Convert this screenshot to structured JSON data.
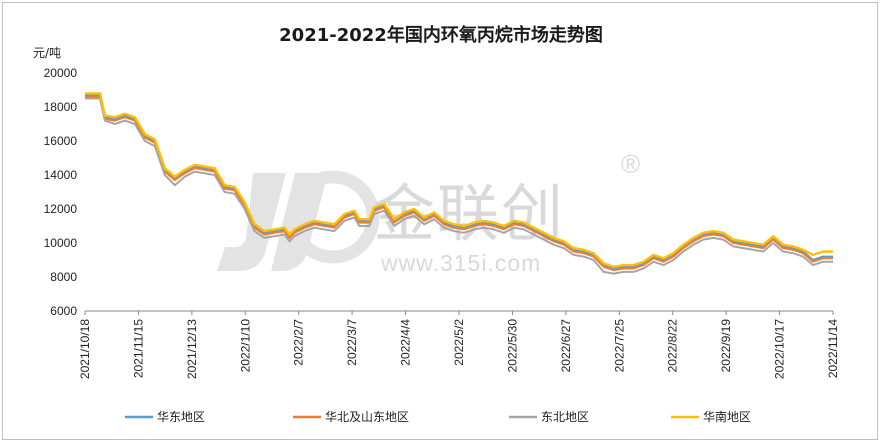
{
  "chart_data": {
    "type": "line",
    "title": "2021-2022年国内环氧丙烷市场走势图",
    "ylabel": "元/吨",
    "xlabel": "",
    "ylim": [
      6000,
      20000
    ],
    "yticks": [
      6000,
      8000,
      10000,
      12000,
      14000,
      16000,
      18000,
      20000
    ],
    "x_tick_labels": [
      "2021/10/18",
      "2021/11/15",
      "2021/12/13",
      "2022/1/10",
      "2022/2/7",
      "2022/3/7",
      "2022/4/4",
      "2022/5/2",
      "2022/5/30",
      "2022/6/27",
      "2022/7/25",
      "2022/8/22",
      "2022/9/19",
      "2022/10/17",
      "2022/11/14"
    ],
    "grid": false,
    "legend_position": "bottom",
    "series": [
      {
        "name": "华东地区",
        "color": "#5b9bd5",
        "values": [
          [
            0,
            18700
          ],
          [
            3,
            18700
          ],
          [
            4,
            17400
          ],
          [
            6,
            17300
          ],
          [
            8,
            17500
          ],
          [
            10,
            17300
          ],
          [
            12,
            16300
          ],
          [
            14,
            16000
          ],
          [
            16,
            14300
          ],
          [
            18,
            13800
          ],
          [
            20,
            14200
          ],
          [
            22,
            14500
          ],
          [
            26,
            14300
          ],
          [
            28,
            13300
          ],
          [
            30,
            13200
          ],
          [
            32,
            12300
          ],
          [
            34,
            11000
          ],
          [
            36,
            10600
          ],
          [
            38,
            10700
          ],
          [
            40,
            10800
          ],
          [
            41,
            10400
          ],
          [
            42,
            10700
          ],
          [
            44,
            11000
          ],
          [
            46,
            11200
          ],
          [
            50,
            11000
          ],
          [
            52,
            11600
          ],
          [
            54,
            11800
          ],
          [
            55,
            11300
          ],
          [
            57,
            11300
          ],
          [
            58,
            12000
          ],
          [
            60,
            12200
          ],
          [
            62,
            11300
          ],
          [
            64,
            11700
          ],
          [
            66,
            11900
          ],
          [
            68,
            11400
          ],
          [
            70,
            11700
          ],
          [
            72,
            11200
          ],
          [
            74,
            11000
          ],
          [
            76,
            10900
          ],
          [
            78,
            11100
          ],
          [
            80,
            11200
          ],
          [
            82,
            11100
          ],
          [
            84,
            10900
          ],
          [
            86,
            11200
          ],
          [
            88,
            11100
          ],
          [
            90,
            10800
          ],
          [
            92,
            10500
          ],
          [
            94,
            10200
          ],
          [
            96,
            10000
          ],
          [
            98,
            9600
          ],
          [
            100,
            9500
          ],
          [
            102,
            9300
          ],
          [
            104,
            8700
          ],
          [
            106,
            8500
          ],
          [
            108,
            8600
          ],
          [
            110,
            8600
          ],
          [
            112,
            8800
          ],
          [
            114,
            9200
          ],
          [
            116,
            9000
          ],
          [
            118,
            9300
          ],
          [
            120,
            9800
          ],
          [
            122,
            10200
          ],
          [
            124,
            10500
          ],
          [
            126,
            10600
          ],
          [
            128,
            10500
          ],
          [
            130,
            10100
          ],
          [
            132,
            10000
          ],
          [
            134,
            9900
          ],
          [
            136,
            9800
          ],
          [
            138,
            10300
          ],
          [
            140,
            9800
          ],
          [
            142,
            9700
          ],
          [
            144,
            9500
          ],
          [
            146,
            9000
          ],
          [
            148,
            9200
          ],
          [
            150,
            9200
          ]
        ]
      },
      {
        "name": "华北及山东地区",
        "color": "#ed7d31",
        "values": [
          [
            0,
            18600
          ],
          [
            3,
            18600
          ],
          [
            4,
            17300
          ],
          [
            6,
            17200
          ],
          [
            8,
            17400
          ],
          [
            10,
            17200
          ],
          [
            12,
            16200
          ],
          [
            14,
            15900
          ],
          [
            16,
            14200
          ],
          [
            18,
            13700
          ],
          [
            20,
            14100
          ],
          [
            22,
            14400
          ],
          [
            26,
            14200
          ],
          [
            28,
            13200
          ],
          [
            30,
            13100
          ],
          [
            32,
            12200
          ],
          [
            34,
            10900
          ],
          [
            36,
            10500
          ],
          [
            38,
            10600
          ],
          [
            40,
            10700
          ],
          [
            41,
            10300
          ],
          [
            42,
            10600
          ],
          [
            44,
            10900
          ],
          [
            46,
            11100
          ],
          [
            50,
            10900
          ],
          [
            52,
            11500
          ],
          [
            54,
            11700
          ],
          [
            55,
            11200
          ],
          [
            57,
            11200
          ],
          [
            58,
            11900
          ],
          [
            60,
            12100
          ],
          [
            62,
            11200
          ],
          [
            64,
            11600
          ],
          [
            66,
            11800
          ],
          [
            68,
            11300
          ],
          [
            70,
            11600
          ],
          [
            72,
            11100
          ],
          [
            74,
            10900
          ],
          [
            76,
            10800
          ],
          [
            78,
            11000
          ],
          [
            80,
            11100
          ],
          [
            82,
            11000
          ],
          [
            84,
            10800
          ],
          [
            86,
            11100
          ],
          [
            88,
            11000
          ],
          [
            90,
            10700
          ],
          [
            92,
            10400
          ],
          [
            94,
            10100
          ],
          [
            96,
            9900
          ],
          [
            98,
            9500
          ],
          [
            100,
            9400
          ],
          [
            102,
            9200
          ],
          [
            104,
            8600
          ],
          [
            106,
            8400
          ],
          [
            108,
            8500
          ],
          [
            110,
            8500
          ],
          [
            112,
            8700
          ],
          [
            114,
            9100
          ],
          [
            116,
            8900
          ],
          [
            118,
            9200
          ],
          [
            120,
            9700
          ],
          [
            122,
            10100
          ],
          [
            124,
            10400
          ],
          [
            126,
            10500
          ],
          [
            128,
            10400
          ],
          [
            130,
            10000
          ],
          [
            132,
            9900
          ],
          [
            134,
            9800
          ],
          [
            136,
            9700
          ],
          [
            138,
            10200
          ],
          [
            140,
            9700
          ],
          [
            142,
            9600
          ],
          [
            144,
            9400
          ],
          [
            146,
            8900
          ],
          [
            148,
            9100
          ],
          [
            150,
            9100
          ]
        ]
      },
      {
        "name": "东北地区",
        "color": "#a5a5a5",
        "values": [
          [
            0,
            18500
          ],
          [
            3,
            18500
          ],
          [
            4,
            17200
          ],
          [
            6,
            17000
          ],
          [
            8,
            17200
          ],
          [
            10,
            17000
          ],
          [
            12,
            16000
          ],
          [
            14,
            15700
          ],
          [
            16,
            14000
          ],
          [
            18,
            13400
          ],
          [
            20,
            13900
          ],
          [
            22,
            14200
          ],
          [
            26,
            14000
          ],
          [
            28,
            13000
          ],
          [
            30,
            12900
          ],
          [
            32,
            12000
          ],
          [
            34,
            10700
          ],
          [
            36,
            10300
          ],
          [
            38,
            10400
          ],
          [
            40,
            10500
          ],
          [
            41,
            10100
          ],
          [
            42,
            10400
          ],
          [
            44,
            10700
          ],
          [
            46,
            10900
          ],
          [
            50,
            10700
          ],
          [
            52,
            11300
          ],
          [
            54,
            11500
          ],
          [
            55,
            11000
          ],
          [
            57,
            11000
          ],
          [
            58,
            11700
          ],
          [
            60,
            11900
          ],
          [
            62,
            11000
          ],
          [
            64,
            11400
          ],
          [
            66,
            11600
          ],
          [
            68,
            11100
          ],
          [
            70,
            11400
          ],
          [
            72,
            10900
          ],
          [
            74,
            10700
          ],
          [
            76,
            10600
          ],
          [
            78,
            10800
          ],
          [
            80,
            10900
          ],
          [
            82,
            10800
          ],
          [
            84,
            10600
          ],
          [
            86,
            10900
          ],
          [
            88,
            10800
          ],
          [
            90,
            10500
          ],
          [
            92,
            10200
          ],
          [
            94,
            9900
          ],
          [
            96,
            9700
          ],
          [
            98,
            9300
          ],
          [
            100,
            9200
          ],
          [
            102,
            9000
          ],
          [
            104,
            8300
          ],
          [
            106,
            8200
          ],
          [
            108,
            8300
          ],
          [
            110,
            8300
          ],
          [
            112,
            8500
          ],
          [
            114,
            8900
          ],
          [
            116,
            8700
          ],
          [
            118,
            9000
          ],
          [
            120,
            9500
          ],
          [
            122,
            9900
          ],
          [
            124,
            10200
          ],
          [
            126,
            10300
          ],
          [
            128,
            10200
          ],
          [
            130,
            9800
          ],
          [
            132,
            9700
          ],
          [
            134,
            9600
          ],
          [
            136,
            9500
          ],
          [
            138,
            10000
          ],
          [
            140,
            9500
          ],
          [
            142,
            9400
          ],
          [
            144,
            9200
          ],
          [
            146,
            8700
          ],
          [
            148,
            8900
          ],
          [
            150,
            8900
          ]
        ]
      },
      {
        "name": "华南地区",
        "color": "#ffc000",
        "values": [
          [
            0,
            18800
          ],
          [
            3,
            18800
          ],
          [
            4,
            17500
          ],
          [
            6,
            17400
          ],
          [
            8,
            17600
          ],
          [
            10,
            17400
          ],
          [
            12,
            16400
          ],
          [
            14,
            16100
          ],
          [
            16,
            14400
          ],
          [
            18,
            13900
          ],
          [
            20,
            14300
          ],
          [
            22,
            14600
          ],
          [
            26,
            14400
          ],
          [
            28,
            13400
          ],
          [
            30,
            13300
          ],
          [
            32,
            12400
          ],
          [
            34,
            11100
          ],
          [
            36,
            10700
          ],
          [
            38,
            10800
          ],
          [
            40,
            10900
          ],
          [
            41,
            10500
          ],
          [
            42,
            10800
          ],
          [
            44,
            11100
          ],
          [
            46,
            11300
          ],
          [
            50,
            11100
          ],
          [
            52,
            11700
          ],
          [
            54,
            11900
          ],
          [
            55,
            11400
          ],
          [
            57,
            11400
          ],
          [
            58,
            12100
          ],
          [
            60,
            12300
          ],
          [
            62,
            11400
          ],
          [
            64,
            11800
          ],
          [
            66,
            12000
          ],
          [
            68,
            11500
          ],
          [
            70,
            11800
          ],
          [
            72,
            11300
          ],
          [
            74,
            11100
          ],
          [
            76,
            11000
          ],
          [
            78,
            11200
          ],
          [
            80,
            11300
          ],
          [
            82,
            11200
          ],
          [
            84,
            11000
          ],
          [
            86,
            11300
          ],
          [
            88,
            11200
          ],
          [
            90,
            10900
          ],
          [
            92,
            10600
          ],
          [
            94,
            10300
          ],
          [
            96,
            10100
          ],
          [
            98,
            9700
          ],
          [
            100,
            9600
          ],
          [
            102,
            9400
          ],
          [
            104,
            8800
          ],
          [
            106,
            8600
          ],
          [
            108,
            8700
          ],
          [
            110,
            8700
          ],
          [
            112,
            8900
          ],
          [
            114,
            9300
          ],
          [
            116,
            9100
          ],
          [
            118,
            9400
          ],
          [
            120,
            9900
          ],
          [
            122,
            10300
          ],
          [
            124,
            10600
          ],
          [
            126,
            10700
          ],
          [
            128,
            10600
          ],
          [
            130,
            10200
          ],
          [
            132,
            10100
          ],
          [
            134,
            10000
          ],
          [
            136,
            9900
          ],
          [
            138,
            10400
          ],
          [
            140,
            9900
          ],
          [
            142,
            9800
          ],
          [
            144,
            9600
          ],
          [
            146,
            9300
          ],
          [
            148,
            9500
          ],
          [
            150,
            9500
          ]
        ]
      }
    ]
  },
  "watermark": {
    "brand": "金联创",
    "url": "www.315i.com",
    "registered": "®"
  }
}
